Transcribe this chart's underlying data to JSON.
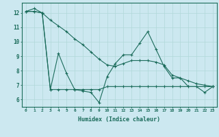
{
  "xlabel": "Humidex (Indice chaleur)",
  "background_color": "#cce8f0",
  "grid_color": "#b0d8d8",
  "line_color": "#1a6b5a",
  "xlim": [
    -0.5,
    23.5
  ],
  "ylim": [
    5.5,
    12.7
  ],
  "yticks": [
    6,
    7,
    8,
    9,
    10,
    11,
    12
  ],
  "xticks": [
    0,
    1,
    2,
    3,
    4,
    5,
    6,
    7,
    8,
    9,
    10,
    11,
    12,
    13,
    14,
    15,
    16,
    17,
    18,
    19,
    20,
    21,
    22,
    23
  ],
  "series1": [
    12.1,
    12.3,
    12.0,
    6.7,
    9.2,
    7.8,
    6.7,
    6.6,
    6.5,
    5.8,
    7.6,
    8.5,
    9.1,
    9.1,
    9.9,
    10.7,
    9.5,
    8.3,
    7.5,
    7.5,
    6.9,
    6.9,
    6.5,
    6.9
  ],
  "series2": [
    12.1,
    12.1,
    12.0,
    11.5,
    11.1,
    10.7,
    10.2,
    9.8,
    9.3,
    8.8,
    8.4,
    8.3,
    8.5,
    8.7,
    8.7,
    8.7,
    8.6,
    8.4,
    7.7,
    7.5,
    7.3,
    7.1,
    7.0,
    6.9
  ],
  "series3": [
    12.1,
    12.1,
    12.0,
    6.7,
    6.7,
    6.7,
    6.7,
    6.7,
    6.7,
    6.7,
    6.9,
    6.9,
    6.9,
    6.9,
    6.9,
    6.9,
    6.9,
    6.9,
    6.9,
    6.9,
    6.9,
    6.9,
    6.9,
    6.9
  ]
}
